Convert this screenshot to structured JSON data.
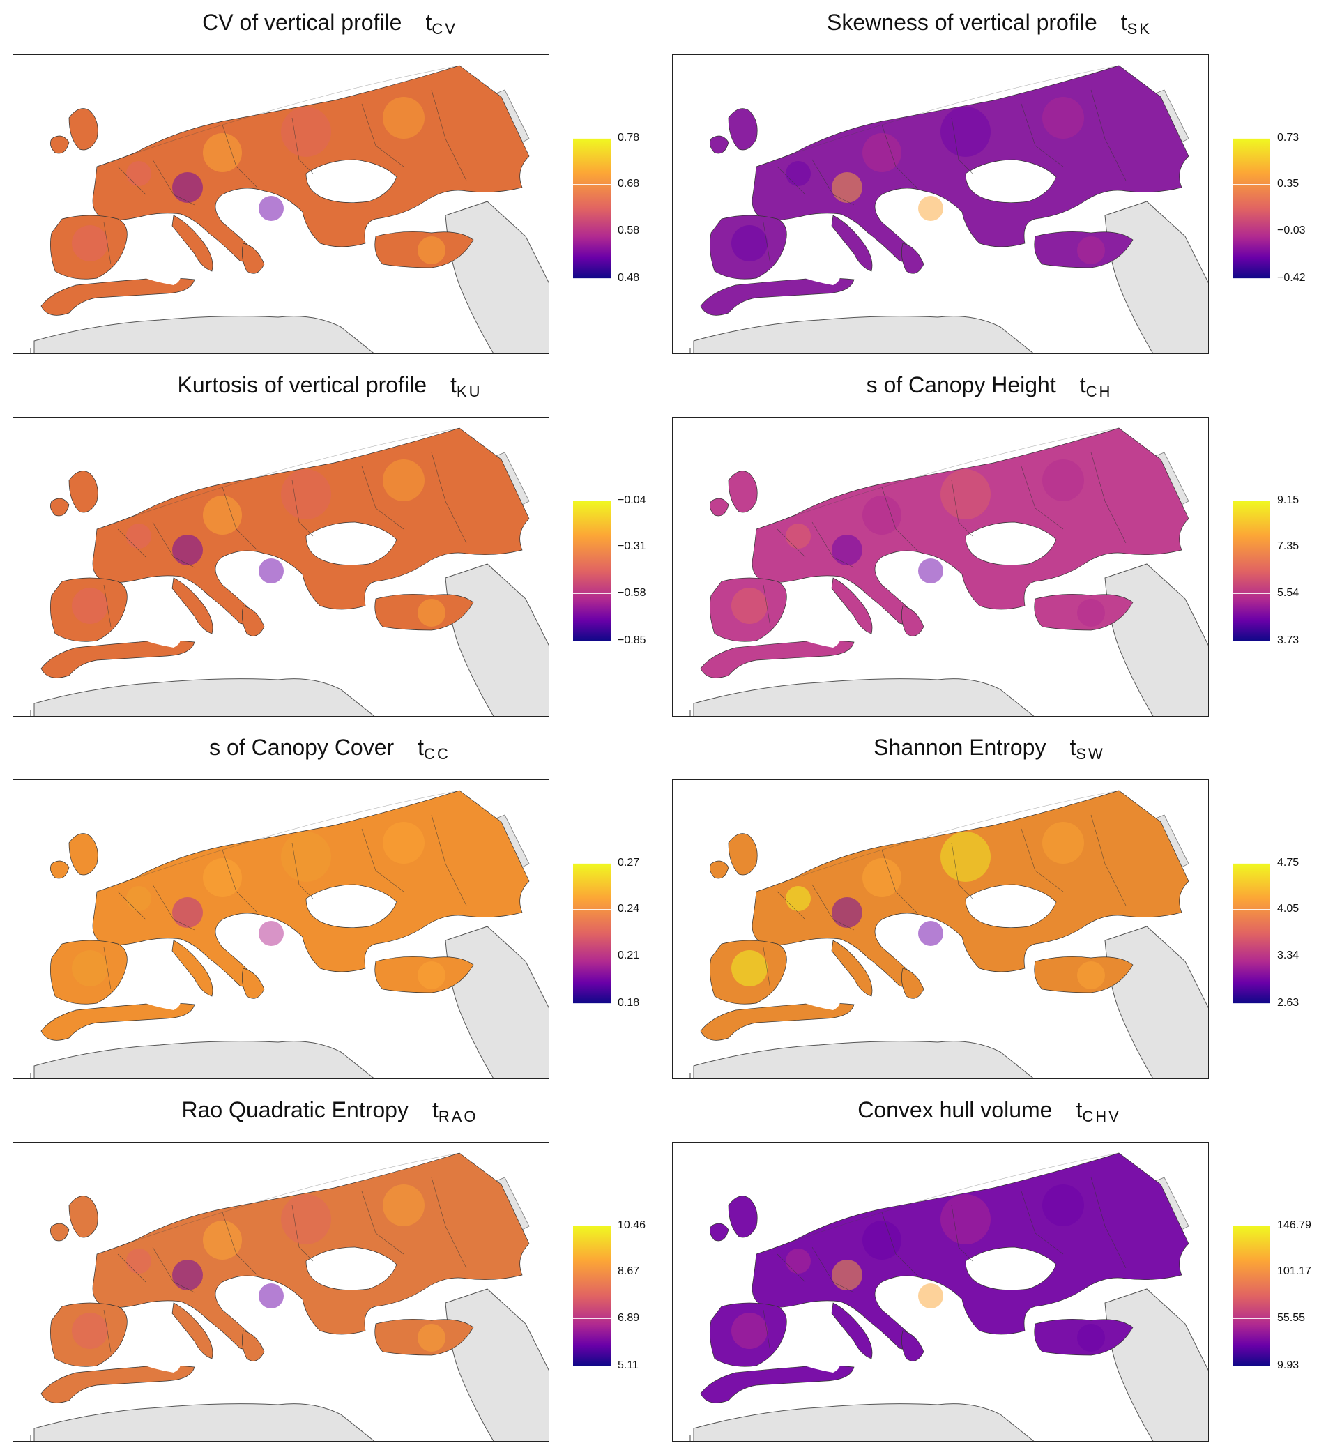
{
  "panels": [
    {
      "title_main": "CV of vertical profile",
      "title_sym": "t",
      "title_sub": "CV",
      "ticks": [
        "0.78",
        "0.68",
        "0.58",
        "0.48"
      ]
    },
    {
      "title_main": "Skewness of vertical profile",
      "title_sym": "t",
      "title_sub": "SK",
      "ticks": [
        "0.73",
        "0.35",
        "−0.03",
        "−0.42"
      ]
    },
    {
      "title_main": "Kurtosis of vertical profile",
      "title_sym": "t",
      "title_sub": "KU",
      "ticks": [
        "−0.04",
        "−0.31",
        "−0.58",
        "−0.85"
      ]
    },
    {
      "title_main": "s  of Canopy Height",
      "title_sym": "t",
      "title_sub": "CH",
      "ticks": [
        "9.15",
        "7.35",
        "5.54",
        "3.73"
      ]
    },
    {
      "title_main": "s  of Canopy Cover",
      "title_sym": "t",
      "title_sub": "CC",
      "ticks": [
        "0.27",
        "0.24",
        "0.21",
        "0.18"
      ]
    },
    {
      "title_main": "Shannon Entropy",
      "title_sym": "t",
      "title_sub": "SW",
      "ticks": [
        "4.75",
        "4.05",
        "3.34",
        "2.63"
      ]
    },
    {
      "title_main": "Rao Quadratic Entropy",
      "title_sym": "t",
      "title_sub": "RAO",
      "ticks": [
        "10.46",
        "8.67",
        "6.89",
        "5.11"
      ]
    },
    {
      "title_main": "Convex hull volume",
      "title_sym": "t",
      "title_sub": "CHV",
      "ticks": [
        "146.79",
        "101.17",
        "55.55",
        "9.93"
      ]
    }
  ],
  "colors": {
    "colormap_top": "#f0f921",
    "colormap_mid_high": "#fca636",
    "colormap_mid": "#e16462",
    "colormap_mid_low": "#b12a90",
    "colormap_low": "#6a00a8",
    "colormap_bottom": "#0d0887",
    "no_data_land": "#e3e3e3",
    "sea": "#ffffff"
  }
}
